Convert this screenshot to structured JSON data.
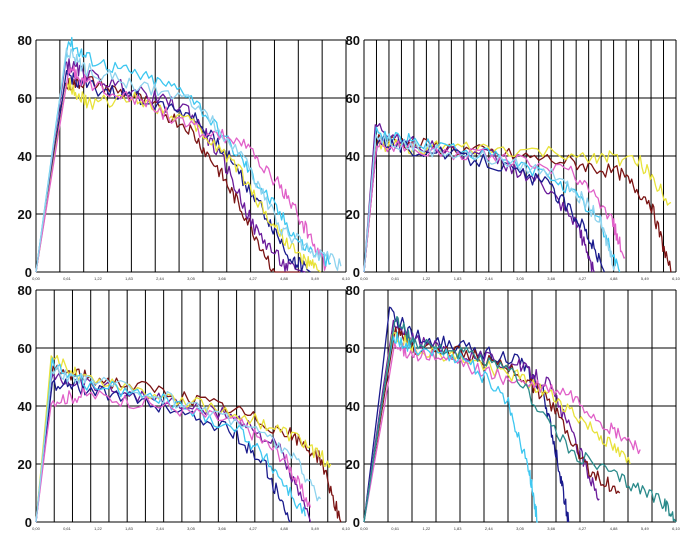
{
  "colors": {
    "grid": "#000000",
    "background": "#ffffff",
    "series_palette": [
      "#1a1a8c",
      "#6a1b9a",
      "#7b1414",
      "#3ec7f0",
      "#e8e23a",
      "#e060c8",
      "#2a8a8a",
      "#8fd3ee",
      "#3a3a9a",
      "#a02070"
    ]
  },
  "chart_data": [
    {
      "type": "line",
      "panel": "top-left",
      "ylim": [
        0,
        80
      ],
      "xlim": [
        0,
        6.1
      ],
      "yticks": [
        "0",
        "20",
        "40",
        "60",
        "80"
      ],
      "xticks": [
        "0,00",
        "0,61",
        "1,22",
        "1,83",
        "2,44",
        "3,05",
        "3,66",
        "4,27",
        "4,88",
        "5,49",
        "6,10"
      ],
      "x_gridlines": 13,
      "grid": true,
      "series": [
        {
          "x": [
            0,
            0.55,
            1.0,
            2.0,
            3.0,
            3.6,
            4.1,
            4.7,
            5.2
          ],
          "y": [
            0,
            64,
            66,
            60,
            50,
            35,
            20,
            0,
            0
          ],
          "color": "#7b1414"
        },
        {
          "x": [
            0,
            0.58,
            1.0,
            2.0,
            3.0,
            3.7,
            4.3,
            4.9,
            5.3
          ],
          "y": [
            0,
            72,
            68,
            62,
            56,
            38,
            15,
            2,
            0
          ],
          "color": "#6a1b9a"
        },
        {
          "x": [
            0,
            0.6,
            1.0,
            2.0,
            3.0,
            3.8,
            4.5,
            5.0,
            5.4
          ],
          "y": [
            0,
            68,
            64,
            60,
            55,
            40,
            20,
            5,
            0
          ],
          "color": "#1a1a8c"
        },
        {
          "x": [
            0,
            0.62,
            1.0,
            2.0,
            3.0,
            4.0,
            4.6,
            5.2,
            5.8
          ],
          "y": [
            0,
            80,
            74,
            68,
            62,
            40,
            25,
            10,
            3
          ],
          "color": "#3ec7f0"
        },
        {
          "x": [
            0,
            0.6,
            1.0,
            2.0,
            3.0,
            3.9,
            4.6,
            5.2,
            5.6
          ],
          "y": [
            0,
            66,
            58,
            60,
            52,
            38,
            18,
            5,
            0
          ],
          "color": "#e8e23a"
        },
        {
          "x": [
            0,
            0.65,
            1.0,
            2.0,
            3.0,
            4.0,
            4.8,
            5.3,
            5.7
          ],
          "y": [
            0,
            70,
            65,
            60,
            50,
            45,
            30,
            15,
            2
          ],
          "color": "#e060c8"
        },
        {
          "x": [
            0,
            0.6,
            1.0,
            2.0,
            3.2,
            4.2,
            4.8,
            5.4,
            6.0
          ],
          "y": [
            0,
            76,
            70,
            64,
            58,
            36,
            15,
            8,
            2
          ],
          "color": "#8fd3ee"
        }
      ]
    },
    {
      "type": "line",
      "panel": "top-right",
      "ylim": [
        0,
        80
      ],
      "xlim": [
        0,
        6.1
      ],
      "yticks": [
        "0",
        "20",
        "40",
        "60",
        "80"
      ],
      "xticks": [
        "0,00",
        "0,61",
        "1,22",
        "1,83",
        "2,44",
        "3,05",
        "3,66",
        "4,27",
        "4,88",
        "5,49",
        "6,10"
      ],
      "x_gridlines": 25,
      "grid": true,
      "series": [
        {
          "x": [
            0,
            0.25,
            1.0,
            2.5,
            4.0,
            5.0,
            5.6,
            6.0
          ],
          "y": [
            0,
            46,
            44,
            41,
            38,
            34,
            24,
            0
          ],
          "color": "#7b1414"
        },
        {
          "x": [
            0,
            0.25,
            1.0,
            2.5,
            4.5,
            5.4,
            6.0
          ],
          "y": [
            0,
            44,
            43,
            42,
            40,
            38,
            24
          ],
          "color": "#e8e23a"
        },
        {
          "x": [
            0,
            0.22,
            1.0,
            2.5,
            3.5,
            4.2,
            4.5
          ],
          "y": [
            0,
            50,
            44,
            40,
            30,
            15,
            0
          ],
          "color": "#6a1b9a"
        },
        {
          "x": [
            0,
            0.24,
            1.0,
            2.5,
            3.8,
            4.6,
            5.0
          ],
          "y": [
            0,
            48,
            45,
            40,
            32,
            18,
            0
          ],
          "color": "#3ec7f0"
        },
        {
          "x": [
            0,
            0.26,
            1.0,
            2.5,
            3.6,
            4.3,
            4.7
          ],
          "y": [
            0,
            46,
            42,
            38,
            30,
            16,
            0
          ],
          "color": "#1a1a8c"
        },
        {
          "x": [
            0,
            0.25,
            1.0,
            2.5,
            4.0,
            4.8,
            5.1
          ],
          "y": [
            0,
            44,
            42,
            40,
            35,
            20,
            5
          ],
          "color": "#e060c8"
        },
        {
          "x": [
            0,
            0.23,
            1.0,
            2.5,
            3.9,
            4.6,
            4.9
          ],
          "y": [
            0,
            47,
            43,
            39,
            33,
            18,
            2
          ],
          "color": "#8fd3ee"
        }
      ]
    },
    {
      "type": "line",
      "panel": "bottom-left",
      "ylim": [
        0,
        80
      ],
      "xlim": [
        0,
        6.1
      ],
      "yticks": [
        "0",
        "20",
        "40",
        "60",
        "80"
      ],
      "xticks": [
        "0,00",
        "0,61",
        "1,22",
        "1,83",
        "2,44",
        "3,05",
        "3,66",
        "4,27",
        "4,88",
        "5,49",
        "6,10"
      ],
      "x_gridlines": 17,
      "grid": true,
      "series": [
        {
          "x": [
            0,
            0.3,
            1.0,
            2.5,
            4.0,
            5.0,
            5.6,
            6.0
          ],
          "y": [
            0,
            52,
            50,
            45,
            38,
            30,
            22,
            0
          ],
          "color": "#7b1414"
        },
        {
          "x": [
            0,
            0.3,
            1.0,
            2.5,
            4.0,
            4.8,
            5.4
          ],
          "y": [
            0,
            50,
            48,
            42,
            36,
            25,
            0
          ],
          "color": "#6a1b9a"
        },
        {
          "x": [
            0,
            0.32,
            1.0,
            2.5,
            3.8,
            4.5,
            5.0
          ],
          "y": [
            0,
            48,
            46,
            40,
            32,
            20,
            0
          ],
          "color": "#1a1a8c"
        },
        {
          "x": [
            0,
            0.3,
            1.0,
            2.5,
            4.2,
            5.2,
            5.8
          ],
          "y": [
            0,
            56,
            50,
            44,
            36,
            28,
            20
          ],
          "color": "#e8e23a"
        },
        {
          "x": [
            0,
            0.32,
            1.0,
            2.5,
            4.0,
            4.7,
            5.3
          ],
          "y": [
            0,
            54,
            48,
            42,
            32,
            18,
            2
          ],
          "color": "#3ec7f0"
        },
        {
          "x": [
            0,
            0.3,
            1.0,
            2.5,
            4.0,
            4.9,
            5.4
          ],
          "y": [
            0,
            42,
            44,
            40,
            34,
            22,
            5
          ],
          "color": "#e060c8"
        },
        {
          "x": [
            0,
            0.31,
            1.0,
            2.5,
            4.0,
            5.0,
            5.6
          ],
          "y": [
            0,
            52,
            49,
            43,
            35,
            24,
            8
          ],
          "color": "#8fd3ee"
        }
      ]
    },
    {
      "type": "line",
      "panel": "bottom-right",
      "ylim": [
        0,
        80
      ],
      "xlim": [
        0,
        6.1
      ],
      "yticks": [
        "0",
        "20",
        "40",
        "60",
        "80"
      ],
      "xticks": [
        "0,00",
        "0,61",
        "1,22",
        "1,83",
        "2,44",
        "3,05",
        "3,66",
        "4,27",
        "4,88",
        "5,49",
        "6,10"
      ],
      "x_gridlines": 13,
      "grid": true,
      "series": [
        {
          "x": [
            0,
            0.5,
            1.0,
            2.0,
            3.0,
            3.5,
            3.8,
            4.0
          ],
          "y": [
            0,
            72,
            64,
            60,
            56,
            45,
            20,
            0
          ],
          "color": "#1a1a8c"
        },
        {
          "x": [
            0,
            0.55,
            1.0,
            2.0,
            3.0,
            3.6,
            4.2,
            4.6
          ],
          "y": [
            0,
            68,
            62,
            58,
            54,
            48,
            25,
            8
          ],
          "color": "#6a1b9a"
        },
        {
          "x": [
            0,
            0.6,
            1.0,
            2.0,
            3.0,
            3.7,
            4.4,
            5.0
          ],
          "y": [
            0,
            66,
            60,
            58,
            52,
            40,
            18,
            10
          ],
          "color": "#7b1414"
        },
        {
          "x": [
            0,
            0.55,
            1.0,
            2.0,
            3.0,
            3.8,
            4.6,
            5.2
          ],
          "y": [
            0,
            64,
            60,
            56,
            50,
            42,
            30,
            20
          ],
          "color": "#e8e23a"
        },
        {
          "x": [
            0,
            0.6,
            1.0,
            2.0,
            3.0,
            4.0,
            4.8,
            5.4
          ],
          "y": [
            0,
            60,
            58,
            54,
            48,
            44,
            32,
            25
          ],
          "color": "#e060c8"
        },
        {
          "x": [
            0,
            0.55,
            1.0,
            2.0,
            2.8,
            3.2,
            3.4
          ],
          "y": [
            0,
            64,
            60,
            56,
            42,
            20,
            0
          ],
          "color": "#3ec7f0"
        },
        {
          "x": [
            0,
            0.6,
            1.0,
            2.0,
            3.0,
            4.0,
            5.0,
            5.8,
            6.1
          ],
          "y": [
            0,
            70,
            62,
            58,
            50,
            25,
            15,
            8,
            0
          ],
          "color": "#2a8a8a"
        }
      ]
    }
  ]
}
